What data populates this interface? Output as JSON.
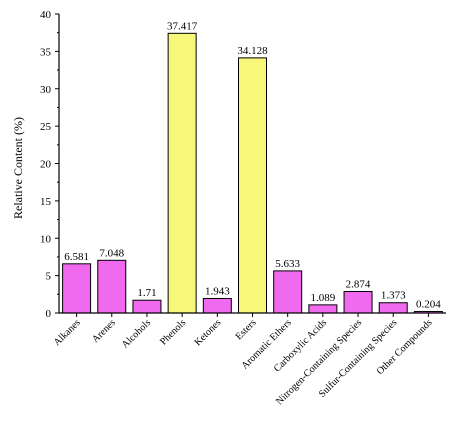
{
  "chart_data": {
    "type": "bar",
    "title": "",
    "xlabel": "",
    "ylabel": "Relative Content (%)",
    "ylim": [
      0,
      40
    ],
    "yticks": [
      "0",
      "5",
      "10",
      "15",
      "20",
      "25",
      "30",
      "35",
      "40"
    ],
    "categories": [
      "Alkanes",
      "Arenes",
      "Alcohols",
      "Phenols",
      "Ketones",
      "Esters",
      "Aromatic Ethers",
      "Carboxylic Acids",
      "Nitrogen-Containing Species",
      "Sulfur-Containing Species",
      "Other Compounds"
    ],
    "values": [
      6.581,
      7.048,
      1.71,
      37.417,
      1.943,
      34.128,
      5.633,
      1.089,
      2.874,
      1.373,
      0.204
    ],
    "value_labels": [
      "6.581",
      "7.048",
      "1.71",
      "37.417",
      "1.943",
      "34.128",
      "5.633",
      "1.089",
      "2.874",
      "1.373",
      "0.204"
    ],
    "bar_colors": [
      "#f06af0",
      "#f06af0",
      "#f06af0",
      "#f7f77a",
      "#f06af0",
      "#f7f77a",
      "#f06af0",
      "#f06af0",
      "#f06af0",
      "#f06af0",
      "#f06af0"
    ],
    "grid": false,
    "legend": "none"
  }
}
